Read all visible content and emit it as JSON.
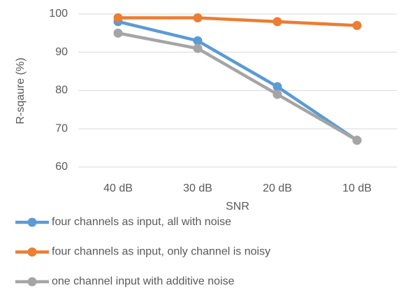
{
  "chart_data": {
    "type": "line",
    "x_label": "SNR",
    "y_label": "R-sqaure (%)",
    "categories": [
      "40 dB",
      "30 dB",
      "20 dB",
      "10 dB"
    ],
    "series": [
      {
        "name": "four channels as input, all with noise",
        "color": "#5b9bd5",
        "values": [
          98,
          93,
          81,
          67
        ]
      },
      {
        "name": "four channels as input, only channel is noisy",
        "color": "#ed7d31",
        "values": [
          99,
          99,
          98,
          97
        ]
      },
      {
        "name": "one channel input with additive noise",
        "color": "#a5a5a5",
        "values": [
          95,
          91,
          79,
          67
        ]
      }
    ],
    "ylim": [
      60,
      100
    ],
    "yticks": [
      60,
      70,
      80,
      90,
      100
    ],
    "grid": true,
    "legend": "bottom"
  }
}
